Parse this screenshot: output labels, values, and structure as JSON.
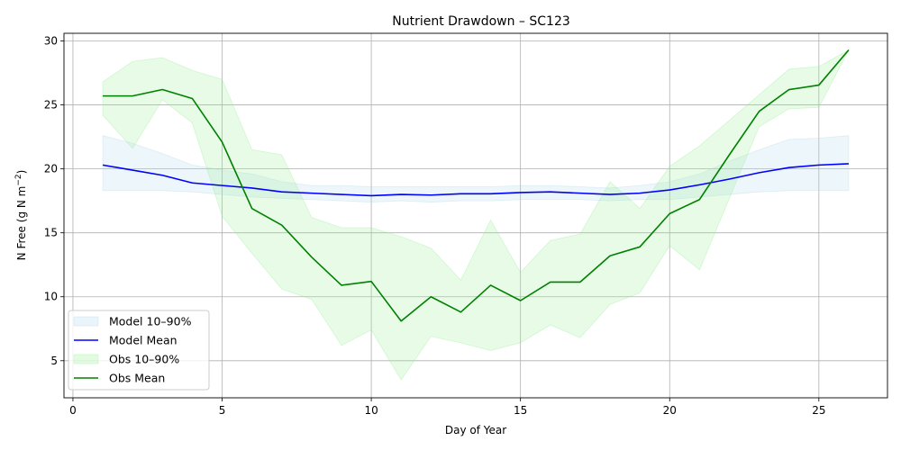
{
  "chart_data": {
    "type": "line",
    "title": "Nutrient Drawdown – SC123",
    "xlabel": "Day of Year",
    "ylabel_main": "N Free (g N m",
    "ylabel_sup": "−2",
    "ylabel_end": ")",
    "xlim": [
      -0.3,
      27.3
    ],
    "ylim": [
      2.1,
      30.6
    ],
    "xticks": [
      0,
      5,
      10,
      15,
      20,
      25
    ],
    "yticks": [
      5,
      10,
      15,
      20,
      25,
      30
    ],
    "grid": true,
    "legend_position": "bottom-left",
    "x": [
      1,
      2,
      3,
      4,
      5,
      6,
      7,
      8,
      9,
      10,
      11,
      12,
      13,
      14,
      15,
      16,
      17,
      18,
      19,
      20,
      21,
      22,
      23,
      24,
      25,
      26
    ],
    "series": [
      {
        "name": "Model 10–90%",
        "kind": "band",
        "color": "#add8e6",
        "lower": [
          18.3,
          18.3,
          18.3,
          18.2,
          18.0,
          17.8,
          17.7,
          17.6,
          17.5,
          17.4,
          17.5,
          17.4,
          17.5,
          17.5,
          17.6,
          17.6,
          17.6,
          17.5,
          17.6,
          17.6,
          17.8,
          18.0,
          18.2,
          18.3,
          18.3,
          18.3
        ],
        "upper": [
          22.6,
          22.0,
          21.2,
          20.3,
          19.9,
          19.6,
          19.0,
          18.7,
          18.7,
          18.6,
          18.6,
          18.6,
          18.6,
          18.6,
          18.7,
          18.7,
          18.6,
          18.5,
          18.7,
          19.0,
          19.6,
          20.6,
          21.5,
          22.3,
          22.4,
          22.6
        ]
      },
      {
        "name": "Model Mean",
        "kind": "line",
        "color": "#0000ff",
        "values": [
          20.3,
          19.9,
          19.5,
          18.9,
          18.7,
          18.5,
          18.2,
          18.1,
          18.0,
          17.9,
          18.0,
          17.95,
          18.05,
          18.05,
          18.15,
          18.2,
          18.1,
          18.0,
          18.1,
          18.35,
          18.75,
          19.2,
          19.7,
          20.1,
          20.3,
          20.4
        ]
      },
      {
        "name": "Obs 10–90%",
        "kind": "band",
        "color": "#90ee90",
        "lower": [
          24.2,
          21.6,
          25.4,
          23.6,
          16.3,
          13.4,
          10.6,
          9.8,
          6.2,
          7.4,
          3.5,
          6.9,
          6.4,
          5.8,
          6.4,
          7.8,
          6.8,
          9.4,
          10.3,
          14.0,
          12.1,
          17.7,
          23.3,
          24.7,
          24.8,
          29.3
        ],
        "upper": [
          26.8,
          28.4,
          28.7,
          27.7,
          27.0,
          21.5,
          21.1,
          16.2,
          15.4,
          15.4,
          14.7,
          13.8,
          11.3,
          16.0,
          11.9,
          14.4,
          14.9,
          19.0,
          16.9,
          20.2,
          21.8,
          23.8,
          25.8,
          27.8,
          28.0,
          29.3
        ]
      },
      {
        "name": "Obs Mean",
        "kind": "line",
        "color": "#008000",
        "values": [
          25.7,
          25.7,
          26.2,
          25.5,
          22.1,
          16.9,
          15.6,
          13.1,
          10.9,
          11.2,
          8.1,
          10.0,
          8.8,
          10.9,
          9.7,
          11.15,
          11.15,
          13.2,
          13.9,
          16.5,
          17.6,
          21.1,
          24.5,
          26.2,
          26.55,
          29.3
        ]
      }
    ]
  }
}
